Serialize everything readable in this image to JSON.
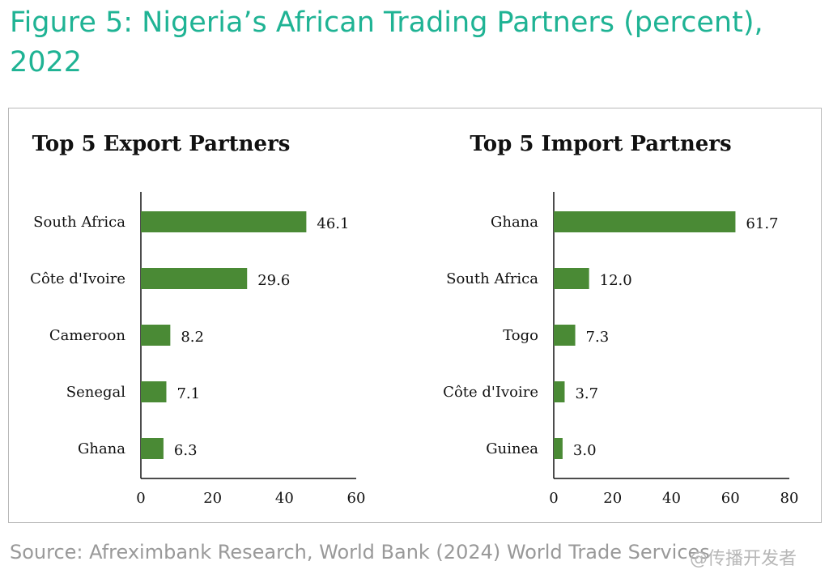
{
  "figure": {
    "title": "Figure 5: Nigeria’s African Trading Partners (percent), 2022",
    "source": "Source: Afreximbank Research, World Bank (2024) World Trade Services",
    "watermark": "@传播开发者"
  },
  "colors": {
    "title": "#1fb394",
    "bar": "#4a8a35",
    "axis": "#111111",
    "source": "#999999"
  },
  "chart_data": [
    {
      "type": "bar",
      "orientation": "horizontal",
      "title": "Top 5 Export Partners",
      "categories": [
        "South Africa",
        "Côte d'Ivoire",
        "Cameroon",
        "Senegal",
        "Ghana"
      ],
      "values": [
        46.1,
        29.6,
        8.2,
        7.1,
        6.3
      ],
      "value_labels": [
        "46.1",
        "29.6",
        "8.2",
        "7.1",
        "6.3"
      ],
      "xlim": [
        0,
        60
      ],
      "xticks": [
        0,
        20,
        40,
        60
      ],
      "grid": false,
      "xlabel": "",
      "ylabel": ""
    },
    {
      "type": "bar",
      "orientation": "horizontal",
      "title": "Top 5 Import Partners",
      "categories": [
        "Ghana",
        "South Africa",
        "Togo",
        "Côte d'Ivoire",
        "Guinea"
      ],
      "values": [
        61.7,
        12.0,
        7.3,
        3.7,
        3.0
      ],
      "value_labels": [
        "61.7",
        "12.0",
        "7.3",
        "3.7",
        "3.0"
      ],
      "xlim": [
        0,
        80
      ],
      "xticks": [
        0,
        20,
        40,
        60,
        80
      ],
      "grid": false,
      "xlabel": "",
      "ylabel": ""
    }
  ]
}
